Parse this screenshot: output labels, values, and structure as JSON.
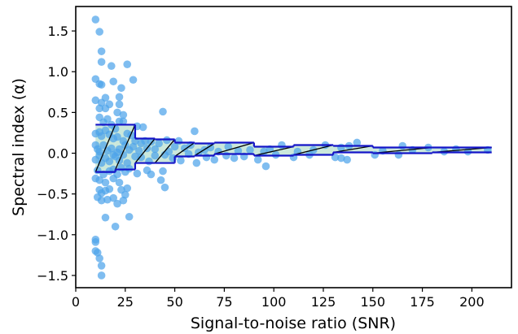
{
  "chart_data": {
    "type": "scatter",
    "xlabel": "Signal-to-noise ratio (SNR)",
    "ylabel": "Spectral index (α)",
    "xlim": [
      0,
      220
    ],
    "ylim": [
      -1.65,
      1.8
    ],
    "xticks": [
      "0",
      "25",
      "50",
      "75",
      "100",
      "125",
      "150",
      "175",
      "200"
    ],
    "yticks": [
      "−1.5",
      "−1.0",
      "−0.5",
      "0.0",
      "0.5",
      "1.0",
      "1.5"
    ],
    "grid": false,
    "legend": "none",
    "colors": {
      "points": "#4da3ea",
      "band_fill": "#b9e0cf",
      "band_edge": "#1414c8",
      "hatch": "#000000"
    },
    "points": [
      [
        10,
        1.64
      ],
      [
        12,
        1.49
      ],
      [
        13,
        1.25
      ],
      [
        13,
        1.12
      ],
      [
        18,
        1.07
      ],
      [
        26,
        1.09
      ],
      [
        10,
        0.91
      ],
      [
        12,
        0.85
      ],
      [
        13,
        0.84
      ],
      [
        15,
        0.68
      ],
      [
        19,
        0.88
      ],
      [
        23,
        0.8
      ],
      [
        29,
        0.9
      ],
      [
        10,
        0.65
      ],
      [
        12,
        0.55
      ],
      [
        13,
        0.62
      ],
      [
        15,
        0.55
      ],
      [
        17,
        0.6
      ],
      [
        21,
        0.5
      ],
      [
        22,
        0.6
      ],
      [
        22,
        0.69
      ],
      [
        24,
        0.47
      ],
      [
        44,
        0.51
      ],
      [
        12,
        0.44
      ],
      [
        14,
        0.38
      ],
      [
        16,
        0.42
      ],
      [
        18,
        0.35
      ],
      [
        22,
        0.39
      ],
      [
        24,
        0.39
      ],
      [
        20,
        0.3
      ],
      [
        31,
        0.33
      ],
      [
        34,
        0.32
      ],
      [
        10,
        0.24
      ],
      [
        12,
        0.26
      ],
      [
        13,
        0.21
      ],
      [
        15,
        0.28
      ],
      [
        17,
        0.23
      ],
      [
        19,
        0.18
      ],
      [
        21,
        0.2
      ],
      [
        24,
        0.15
      ],
      [
        26,
        0.24
      ],
      [
        28,
        0.22
      ],
      [
        30,
        0.15
      ],
      [
        33,
        0.12
      ],
      [
        35,
        0.15
      ],
      [
        38,
        0.14
      ],
      [
        42,
        0.12
      ],
      [
        46,
        0.16
      ],
      [
        52,
        0.15
      ],
      [
        60,
        0.27
      ],
      [
        10,
        0.1
      ],
      [
        11,
        0.05
      ],
      [
        12,
        0.02
      ],
      [
        14,
        0.1
      ],
      [
        16,
        0.03
      ],
      [
        18,
        0.06
      ],
      [
        19,
        -0.02
      ],
      [
        21,
        0.01
      ],
      [
        22,
        0.05
      ],
      [
        25,
        0.1
      ],
      [
        27,
        0.04
      ],
      [
        29,
        0.08
      ],
      [
        32,
        0.03
      ],
      [
        36,
        0.06
      ],
      [
        40,
        0.05
      ],
      [
        47,
        0.02
      ],
      [
        50,
        0.08
      ],
      [
        55,
        0.06
      ],
      [
        58,
        0.1
      ],
      [
        62,
        0.01
      ],
      [
        65,
        0.04
      ],
      [
        68,
        0.07
      ],
      [
        72,
        0.02
      ],
      [
        77,
        0.08
      ],
      [
        82,
        0.03
      ],
      [
        88,
        0.04
      ],
      [
        95,
        0.02
      ],
      [
        98,
        0.05
      ],
      [
        104,
        0.1
      ],
      [
        112,
        0.02
      ],
      [
        120,
        0.04
      ],
      [
        126,
        0.1
      ],
      [
        134,
        0.07
      ],
      [
        138,
        0.09
      ],
      [
        142,
        0.13
      ],
      [
        155,
        0.03
      ],
      [
        165,
        0.09
      ],
      [
        170,
        0.04
      ],
      [
        178,
        0.07
      ],
      [
        186,
        0.02
      ],
      [
        192,
        0.05
      ],
      [
        198,
        0.02
      ],
      [
        208,
        0.04
      ],
      [
        10,
        -0.08
      ],
      [
        12,
        -0.03
      ],
      [
        13,
        -0.12
      ],
      [
        15,
        -0.06
      ],
      [
        17,
        -0.1
      ],
      [
        20,
        -0.04
      ],
      [
        22,
        -0.09
      ],
      [
        24,
        -0.02
      ],
      [
        26,
        -0.12
      ],
      [
        30,
        -0.04
      ],
      [
        33,
        -0.05
      ],
      [
        37,
        -0.1
      ],
      [
        40,
        -0.03
      ],
      [
        45,
        -0.02
      ],
      [
        49,
        -0.06
      ],
      [
        53,
        -0.09
      ],
      [
        57,
        -0.01
      ],
      [
        61,
        -0.12
      ],
      [
        66,
        -0.05
      ],
      [
        70,
        -0.08
      ],
      [
        76,
        -0.03
      ],
      [
        80,
        -0.06
      ],
      [
        85,
        -0.04
      ],
      [
        92,
        -0.08
      ],
      [
        96,
        -0.16
      ],
      [
        101,
        -0.02
      ],
      [
        110,
        -0.05
      ],
      [
        118,
        -0.02
      ],
      [
        131,
        -0.05
      ],
      [
        134,
        -0.06
      ],
      [
        137,
        -0.08
      ],
      [
        151,
        -0.02
      ],
      [
        163,
        -0.02
      ],
      [
        11,
        -0.21
      ],
      [
        12,
        -0.33
      ],
      [
        14,
        -0.26
      ],
      [
        15,
        -0.36
      ],
      [
        17,
        -0.22
      ],
      [
        19,
        -0.2
      ],
      [
        21,
        -0.26
      ],
      [
        23,
        -0.18
      ],
      [
        25,
        -0.23
      ],
      [
        27,
        -0.19
      ],
      [
        31,
        -0.25
      ],
      [
        36,
        -0.21
      ],
      [
        38,
        -0.26
      ],
      [
        44,
        -0.22
      ],
      [
        43,
        -0.33
      ],
      [
        45,
        -0.42
      ],
      [
        10,
        -0.31
      ],
      [
        12,
        -0.45
      ],
      [
        13,
        -0.49
      ],
      [
        15,
        -0.46
      ],
      [
        17,
        -0.44
      ],
      [
        19,
        -0.31
      ],
      [
        22,
        -0.36
      ],
      [
        23,
        -0.45
      ],
      [
        26,
        -0.43
      ],
      [
        25,
        -0.51
      ],
      [
        11,
        -0.54
      ],
      [
        13,
        -0.58
      ],
      [
        16,
        -0.57
      ],
      [
        19,
        -0.55
      ],
      [
        21,
        -0.62
      ],
      [
        24,
        -0.58
      ],
      [
        15,
        -0.79
      ],
      [
        27,
        -0.78
      ],
      [
        20,
        -0.9
      ],
      [
        10,
        -1.06
      ],
      [
        10,
        -1.09
      ],
      [
        10,
        -1.2
      ],
      [
        11,
        -1.22
      ],
      [
        12,
        -1.29
      ],
      [
        13,
        -1.38
      ],
      [
        13,
        -1.5
      ]
    ],
    "bands": [
      {
        "x0": 10,
        "x1": 20,
        "lower": -0.23,
        "upper": 0.35
      },
      {
        "x0": 20,
        "x1": 30,
        "lower": -0.2,
        "upper": 0.35
      },
      {
        "x0": 30,
        "x1": 40,
        "lower": -0.12,
        "upper": 0.18
      },
      {
        "x0": 40,
        "x1": 50,
        "lower": -0.12,
        "upper": 0.17
      },
      {
        "x0": 50,
        "x1": 60,
        "lower": -0.04,
        "upper": 0.13
      },
      {
        "x0": 60,
        "x1": 70,
        "lower": -0.03,
        "upper": 0.12
      },
      {
        "x0": 70,
        "x1": 90,
        "lower": -0.01,
        "upper": 0.13
      },
      {
        "x0": 90,
        "x1": 110,
        "lower": -0.03,
        "upper": 0.08
      },
      {
        "x0": 110,
        "x1": 130,
        "lower": -0.02,
        "upper": 0.1
      },
      {
        "x0": 130,
        "x1": 150,
        "lower": 0.01,
        "upper": 0.09
      },
      {
        "x0": 150,
        "x1": 180,
        "lower": 0.0,
        "upper": 0.07
      },
      {
        "x0": 180,
        "x1": 210,
        "lower": 0.01,
        "upper": 0.07
      }
    ]
  }
}
